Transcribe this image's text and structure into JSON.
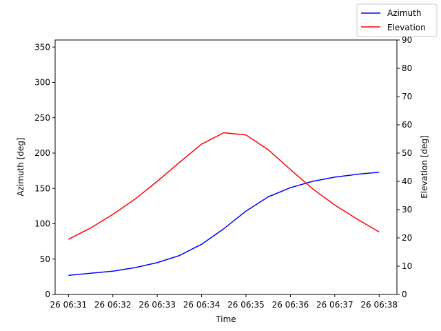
{
  "chart_data": {
    "type": "line",
    "xlabel": "Time",
    "ylabel_left": "Azimuth [deg]",
    "ylabel_right": "Elevation [deg]",
    "x_ticks": [
      "26 06:31",
      "26 06:32",
      "26 06:33",
      "26 06:34",
      "26 06:35",
      "26 06:36",
      "26 06:37",
      "26 06:38"
    ],
    "x_tick_minutes": [
      31,
      32,
      33,
      34,
      35,
      36,
      37,
      38
    ],
    "xlim_minutes": [
      30.7,
      38.4
    ],
    "ylim_left": [
      0,
      360
    ],
    "yticks_left": [
      0,
      50,
      100,
      150,
      200,
      250,
      300,
      350
    ],
    "ylim_right": [
      0,
      90
    ],
    "yticks_right": [
      0,
      10,
      20,
      30,
      40,
      50,
      60,
      70,
      80,
      90
    ],
    "legend": {
      "placement": "top-right",
      "entries": [
        "Azimuth",
        "Elevation"
      ]
    },
    "series": [
      {
        "name": "Azimuth",
        "axis": "left",
        "color": "#0000ff",
        "x_minutes": [
          31.0,
          31.5,
          32.0,
          32.5,
          33.0,
          33.5,
          34.0,
          34.5,
          35.0,
          35.5,
          36.0,
          36.5,
          37.0,
          37.5,
          38.0
        ],
        "values": [
          27,
          30,
          33,
          38,
          45,
          55,
          71,
          93,
          118,
          138,
          151,
          160,
          166,
          170,
          173
        ]
      },
      {
        "name": "Elevation",
        "axis": "right",
        "color": "#ff0000",
        "x_minutes": [
          31.0,
          31.5,
          32.0,
          32.5,
          33.0,
          33.5,
          34.0,
          34.5,
          35.0,
          35.5,
          36.0,
          36.5,
          37.0,
          37.5,
          38.0
        ],
        "values": [
          19.5,
          23.5,
          28.3,
          33.7,
          40.0,
          46.7,
          53.2,
          57.2,
          56.4,
          51.2,
          44.2,
          37.4,
          31.6,
          26.7,
          22.1
        ]
      }
    ]
  }
}
